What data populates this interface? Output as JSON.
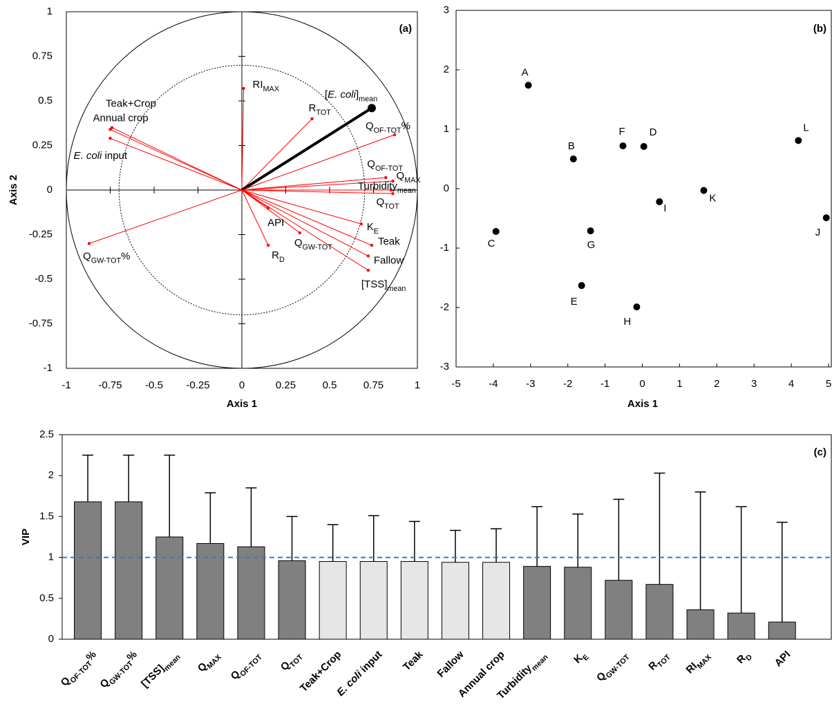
{
  "chart_data": [
    {
      "type": "correlation-circle",
      "title": "(a)",
      "x_label": "Axis 1",
      "y_label": "Axis 2",
      "xlim": [
        -1,
        1
      ],
      "ylim": [
        -1,
        1
      ],
      "xticks": [
        -1,
        -0.75,
        -0.5,
        -0.25,
        0,
        0.25,
        0.5,
        0.75,
        1
      ],
      "yticks": [
        -1,
        -0.75,
        -0.5,
        -0.25,
        0,
        0.25,
        0.5,
        0.75,
        1
      ],
      "variables": [
        {
          "label": [
            {
              "t": "RI"
            },
            {
              "t": "MAX",
              "sub": true
            }
          ],
          "x": 0.01,
          "y": 0.57,
          "color": "#ff0000"
        },
        {
          "label": [
            {
              "t": "R"
            },
            {
              "t": "TOT",
              "sub": true
            }
          ],
          "x": 0.4,
          "y": 0.4,
          "color": "#ff0000"
        },
        {
          "label": [
            {
              "t": "["
            },
            {
              "t": "E. coli",
              "i": true
            },
            {
              "t": "]"
            },
            {
              "t": "mean",
              "sub": true
            }
          ],
          "x": 0.74,
          "y": 0.46,
          "color": "#000000",
          "bold": true
        },
        {
          "label": [
            {
              "t": "Q"
            },
            {
              "t": "OF-TOT",
              "sub": true
            },
            {
              "t": "%"
            }
          ],
          "x": 0.87,
          "y": 0.31,
          "color": "#ff0000"
        },
        {
          "label": [
            {
              "t": "Q"
            },
            {
              "t": "OF-TOT",
              "sub": true
            }
          ],
          "x": 0.82,
          "y": 0.07,
          "color": "#ff0000"
        },
        {
          "label": [
            {
              "t": "Q"
            },
            {
              "t": "MAX",
              "sub": true
            }
          ],
          "x": 0.86,
          "y": 0.05,
          "color": "#ff0000"
        },
        {
          "label": [
            {
              "t": "Turbidity"
            },
            {
              "t": "mean",
              "sub": true
            }
          ],
          "x": 0.85,
          "y": 0.0,
          "color": "#ff0000"
        },
        {
          "label": [
            {
              "t": "Q"
            },
            {
              "t": "TOT",
              "sub": true
            }
          ],
          "x": 0.86,
          "y": -0.02,
          "color": "#ff0000"
        },
        {
          "label": [
            {
              "t": "K"
            },
            {
              "t": "E",
              "sub": true
            }
          ],
          "x": 0.68,
          "y": -0.19,
          "color": "#ff0000"
        },
        {
          "label": [
            {
              "t": "Teak"
            }
          ],
          "x": 0.74,
          "y": -0.31,
          "color": "#ff0000"
        },
        {
          "label": [
            {
              "t": "Fallow"
            }
          ],
          "x": 0.72,
          "y": -0.37,
          "color": "#ff0000"
        },
        {
          "label": [
            {
              "t": "[TSS]"
            },
            {
              "t": "mean",
              "sub": true
            }
          ],
          "x": 0.72,
          "y": -0.45,
          "color": "#ff0000"
        },
        {
          "label": [
            {
              "t": "Q"
            },
            {
              "t": "GW-TOT",
              "sub": true
            }
          ],
          "x": 0.33,
          "y": -0.24,
          "color": "#ff0000"
        },
        {
          "label": [
            {
              "t": "API"
            }
          ],
          "x": 0.15,
          "y": -0.1,
          "color": "#ff0000"
        },
        {
          "label": [
            {
              "t": "R"
            },
            {
              "t": "D",
              "sub": true
            }
          ],
          "x": 0.15,
          "y": -0.31,
          "color": "#ff0000"
        },
        {
          "label": [
            {
              "t": "Q"
            },
            {
              "t": "GW-TOT",
              "sub": true
            },
            {
              "t": "%"
            }
          ],
          "x": -0.87,
          "y": -0.3,
          "color": "#ff0000"
        },
        {
          "label": [
            {
              "t": "Teak+Crop"
            }
          ],
          "x": -0.74,
          "y": 0.35,
          "color": "#ff0000"
        },
        {
          "label": [
            {
              "t": "Annual crop"
            }
          ],
          "x": -0.75,
          "y": 0.34,
          "color": "#ff0000"
        },
        {
          "label": [
            {
              "t": "E. coli",
              "i": true
            },
            {
              "t": " input"
            }
          ],
          "x": -0.75,
          "y": 0.29,
          "color": "#ff0000"
        }
      ]
    },
    {
      "type": "scatter",
      "title": "(b)",
      "x_label": "Axis 1",
      "xlim": [
        -5,
        5
      ],
      "ylim": [
        -3,
        3
      ],
      "xticks": [
        -5,
        -4,
        -3,
        -2,
        -1,
        0,
        1,
        2,
        3,
        4,
        5
      ],
      "yticks": [
        -3,
        -2,
        -1,
        0,
        1,
        2,
        3
      ],
      "color": "#000000",
      "labels": [
        "A",
        "B",
        "C",
        "D",
        "E",
        "F",
        "G",
        "H",
        "I",
        "J",
        "K",
        "L"
      ],
      "x": [
        -3.06,
        -1.85,
        -3.93,
        0.04,
        -1.63,
        -0.52,
        -1.39,
        -0.15,
        0.46,
        4.94,
        1.65,
        4.19
      ],
      "y": [
        1.74,
        0.5,
        -0.72,
        0.71,
        -1.63,
        0.72,
        -0.71,
        -1.99,
        -0.22,
        -0.49,
        -0.03,
        0.81
      ]
    },
    {
      "type": "bar",
      "title": "(c)",
      "y_label": "VIP",
      "ylim": [
        0,
        2.5
      ],
      "yticks": [
        0,
        0.5,
        1,
        1.5,
        2,
        2.5
      ],
      "categories": [
        [
          {
            "t": "Q"
          },
          {
            "t": "OF-TOT",
            "sub": true
          },
          {
            "t": "%"
          }
        ],
        [
          {
            "t": "Q"
          },
          {
            "t": "GW-TOT",
            "sub": true
          },
          {
            "t": "%"
          }
        ],
        [
          {
            "t": "[TSS]"
          },
          {
            "t": "mean",
            "sub": true
          }
        ],
        [
          {
            "t": "Q"
          },
          {
            "t": "MAX",
            "sub": true
          }
        ],
        [
          {
            "t": "Q"
          },
          {
            "t": "OF-TOT",
            "sub": true
          }
        ],
        [
          {
            "t": "Q"
          },
          {
            "t": "TOT",
            "sub": true
          }
        ],
        [
          {
            "t": "Teak+Crop"
          }
        ],
        [
          {
            "t": "E. coli",
            "i": true
          },
          {
            "t": " input"
          }
        ],
        [
          {
            "t": "Teak"
          }
        ],
        [
          {
            "t": "Fallow"
          }
        ],
        [
          {
            "t": "Annual crop"
          }
        ],
        [
          {
            "t": "Turbidity"
          },
          {
            "t": "mean",
            "sub": true
          }
        ],
        [
          {
            "t": "K"
          },
          {
            "t": "E",
            "sub": true
          }
        ],
        [
          {
            "t": "Q"
          },
          {
            "t": "GW-TOT",
            "sub": true
          }
        ],
        [
          {
            "t": "R"
          },
          {
            "t": "TOT",
            "sub": true
          }
        ],
        [
          {
            "t": "RI"
          },
          {
            "t": "MAX",
            "sub": true
          }
        ],
        [
          {
            "t": "R"
          },
          {
            "t": "D",
            "sub": true
          }
        ],
        [
          {
            "t": "API"
          }
        ]
      ],
      "values": [
        1.68,
        1.68,
        1.25,
        1.17,
        1.13,
        0.96,
        0.95,
        0.95,
        0.95,
        0.94,
        0.94,
        0.89,
        0.88,
        0.72,
        0.67,
        0.36,
        0.32,
        0.21
      ],
      "errors": [
        0.57,
        0.57,
        1.0,
        0.62,
        0.72,
        0.54,
        0.45,
        0.56,
        0.49,
        0.39,
        0.41,
        0.73,
        0.65,
        0.99,
        1.36,
        1.44,
        1.3,
        1.22
      ],
      "colors": [
        "#808080",
        "#808080",
        "#808080",
        "#808080",
        "#808080",
        "#808080",
        "#e6e6e6",
        "#e6e6e6",
        "#e6e6e6",
        "#e6e6e6",
        "#e6e6e6",
        "#808080",
        "#808080",
        "#808080",
        "#808080",
        "#808080",
        "#808080",
        "#808080"
      ],
      "hline": {
        "value": 1,
        "color": "#4472c4",
        "dashed": true
      }
    }
  ]
}
